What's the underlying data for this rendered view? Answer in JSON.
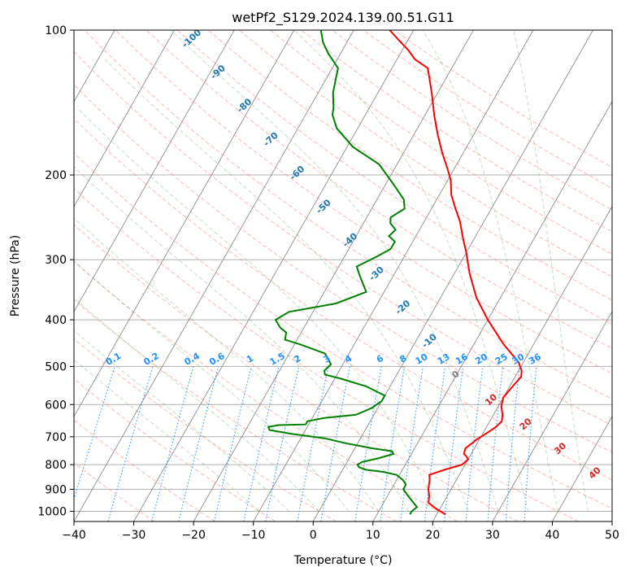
{
  "chart_data": {
    "type": "line",
    "subtype": "skew-T log-P diagram",
    "title": "wetPf2_S129.2024.139.00.51.G11",
    "xlabel": "Temperature (°C)",
    "ylabel": "Pressure (hPa)",
    "xlim": [
      -40,
      50
    ],
    "ylim": [
      1050,
      100
    ],
    "y_scale": "log",
    "x_ticks": [
      "−40",
      "−30",
      "−20",
      "−10",
      "0",
      "10",
      "20",
      "30",
      "40",
      "50"
    ],
    "y_ticks": [
      "100",
      "200",
      "300",
      "400",
      "500",
      "600",
      "700",
      "800",
      "900",
      "1000"
    ],
    "grid": true,
    "series": [
      {
        "color": "#ff0000",
        "role": "temperature",
        "points": [
          [
            21.5,
            1015
          ],
          [
            19.5,
            990
          ],
          [
            17.5,
            960
          ],
          [
            17.0,
            930
          ],
          [
            16.2,
            900
          ],
          [
            15.5,
            860
          ],
          [
            15.0,
            840
          ],
          [
            17.0,
            820
          ],
          [
            19.5,
            800
          ],
          [
            20.0,
            780
          ],
          [
            19.5,
            770
          ],
          [
            18.8,
            760
          ],
          [
            18.5,
            740
          ],
          [
            19.2,
            720
          ],
          [
            19.5,
            710
          ],
          [
            20.5,
            690
          ],
          [
            21.5,
            670
          ],
          [
            22.0,
            650
          ],
          [
            21.5,
            630
          ],
          [
            20.5,
            605
          ],
          [
            20.0,
            580
          ],
          [
            20.5,
            550
          ],
          [
            21.0,
            525
          ],
          [
            20.5,
            510
          ],
          [
            19.2,
            490
          ],
          [
            15.0,
            450
          ],
          [
            10.0,
            400
          ],
          [
            6.0,
            360
          ],
          [
            2.5,
            320
          ],
          [
            0.0,
            290
          ],
          [
            -2.0,
            270
          ],
          [
            -4.0,
            250
          ],
          [
            -6.0,
            235
          ],
          [
            -8.0,
            220
          ],
          [
            -9.5,
            205
          ],
          [
            -11.0,
            195
          ],
          [
            -13.5,
            180
          ],
          [
            -16.0,
            165
          ],
          [
            -18.5,
            150
          ],
          [
            -21.0,
            135
          ],
          [
            -24.0,
            120
          ],
          [
            -27.0,
            115
          ],
          [
            -29.0,
            110
          ],
          [
            -31.5,
            105
          ],
          [
            -34.0,
            100
          ]
        ]
      },
      {
        "color": "#008000",
        "role": "dewpoint",
        "points": [
          [
            15.5,
            1015
          ],
          [
            15.5,
            1000
          ],
          [
            16.0,
            980
          ],
          [
            15.0,
            960
          ],
          [
            14.0,
            940
          ],
          [
            13.0,
            920
          ],
          [
            12.0,
            900
          ],
          [
            12.0,
            880
          ],
          [
            11.0,
            860
          ],
          [
            9.5,
            840
          ],
          [
            7.0,
            828
          ],
          [
            4.0,
            820
          ],
          [
            2.5,
            810
          ],
          [
            2.0,
            800
          ],
          [
            2.5,
            790
          ],
          [
            5.0,
            775
          ],
          [
            7.0,
            760
          ],
          [
            6.5,
            750
          ],
          [
            3.0,
            740
          ],
          [
            -2.0,
            722
          ],
          [
            -6.0,
            705
          ],
          [
            -12.0,
            690
          ],
          [
            -16.0,
            678
          ],
          [
            -16.5,
            668
          ],
          [
            -15.0,
            662
          ],
          [
            -10.5,
            660
          ],
          [
            -10.5,
            650
          ],
          [
            -8.0,
            640
          ],
          [
            -3.0,
            630
          ],
          [
            -1.0,
            610
          ],
          [
            0.0,
            590
          ],
          [
            0.0,
            575
          ],
          [
            -4.0,
            550
          ],
          [
            -9.0,
            530
          ],
          [
            -12.0,
            520
          ],
          [
            -12.5,
            510
          ],
          [
            -12.0,
            495
          ],
          [
            -14.0,
            470
          ],
          [
            -19.0,
            450
          ],
          [
            -22.0,
            440
          ],
          [
            -22.5,
            425
          ],
          [
            -24.0,
            415
          ],
          [
            -25.5,
            400
          ],
          [
            -24.0,
            385
          ],
          [
            -17.0,
            370
          ],
          [
            -13.0,
            350
          ],
          [
            -15.5,
            325
          ],
          [
            -17.0,
            310
          ],
          [
            -14.5,
            295
          ],
          [
            -13.0,
            285
          ],
          [
            -13.0,
            275
          ],
          [
            -14.5,
            268
          ],
          [
            -14.0,
            260
          ],
          [
            -15.5,
            252
          ],
          [
            -16.0,
            245
          ],
          [
            -14.5,
            235
          ],
          [
            -15.5,
            225
          ],
          [
            -18.5,
            210
          ],
          [
            -23.0,
            190
          ],
          [
            -29.0,
            175
          ],
          [
            -33.5,
            160
          ],
          [
            -35.5,
            150
          ],
          [
            -36.0,
            145
          ],
          [
            -37.5,
            135
          ],
          [
            -38.5,
            125
          ],
          [
            -39.0,
            120
          ],
          [
            -42.0,
            112
          ],
          [
            -44.0,
            106
          ],
          [
            -45.5,
            100
          ]
        ]
      }
    ],
    "dry_adiabat_labels": [
      "-100",
      "-90",
      "-80",
      "-70",
      "-60",
      "-50",
      "-40",
      "-30",
      "-20",
      "-10",
      "0",
      "10",
      "20",
      "30",
      "40"
    ],
    "dry_adiabat_label_colors": {
      "cold": "#1f77b4",
      "zero": "#7f7f7f",
      "warm": "#d62728"
    },
    "mixing_ratio_labels": [
      "0.1",
      "0.2",
      "0.4",
      "0.6",
      "1",
      "1.5",
      "2",
      "3",
      "4",
      "6",
      "8",
      "10",
      "13",
      "16",
      "20",
      "25",
      "30",
      "36"
    ],
    "mixing_ratio_color": "#1e90ff",
    "dry_adiabat_color": "#fa8072",
    "moist_adiabat_color": "#2ca02c",
    "isotherm_color": "#808080",
    "isobar_color": "#b0b0b0"
  }
}
